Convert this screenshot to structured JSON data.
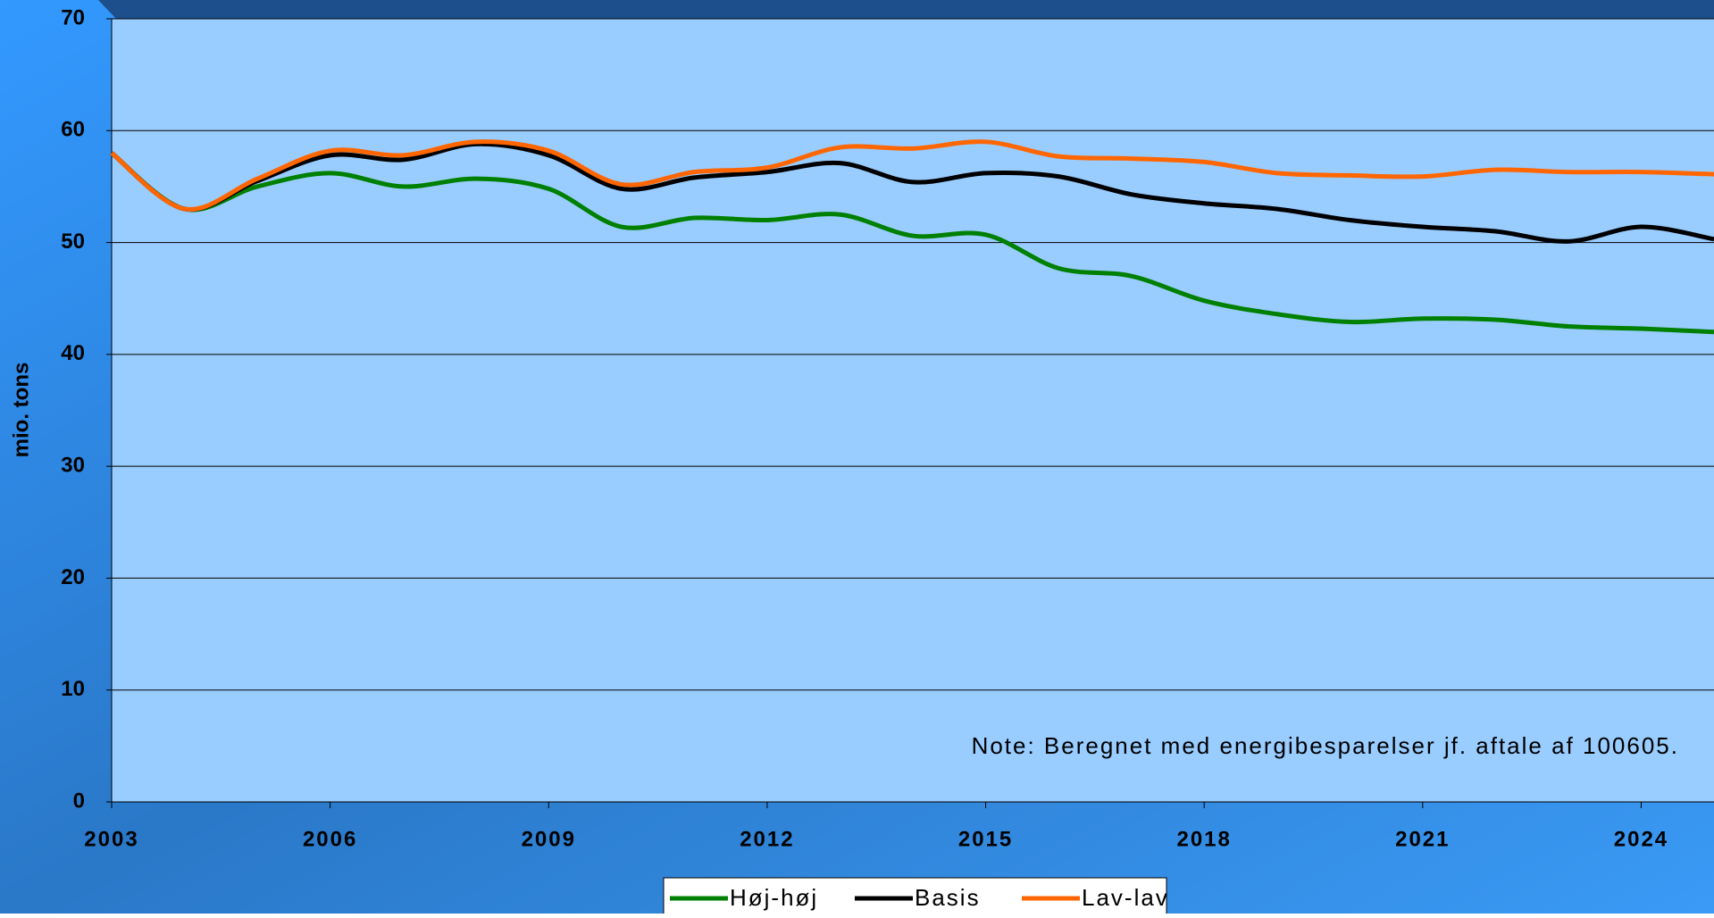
{
  "chart_data": {
    "type": "line",
    "y_label": "mio. tons",
    "annotation": "Note: Beregnet med energibesparelser jf. aftale af 100605.",
    "x": [
      2003,
      2004,
      2005,
      2006,
      2007,
      2008,
      2009,
      2010,
      2011,
      2012,
      2013,
      2014,
      2015,
      2016,
      2017,
      2018,
      2019,
      2020,
      2021,
      2022,
      2023,
      2024,
      2025
    ],
    "series": [
      {
        "name": "Høj-høj",
        "color": "#008000",
        "values": [
          58,
          53,
          55,
          56.2,
          55,
          55.7,
          54.8,
          51.4,
          52.2,
          52,
          52.5,
          50.6,
          50.7,
          47.7,
          47,
          44.8,
          43.6,
          42.9,
          43.2,
          43.1,
          42.5,
          42.3,
          42
        ]
      },
      {
        "name": "Basis",
        "color": "#000000",
        "values": [
          58,
          53,
          55.5,
          57.8,
          57.4,
          58.8,
          57.8,
          54.8,
          55.8,
          56.3,
          57.1,
          55.4,
          56.2,
          55.9,
          54.3,
          53.5,
          53,
          52,
          51.4,
          51,
          50.1,
          51.4,
          50.3
        ]
      },
      {
        "name": "Lav-lav",
        "color": "#ff6600",
        "values": [
          58,
          53,
          55.7,
          58.2,
          57.8,
          59,
          58.2,
          55.2,
          56.3,
          56.7,
          58.5,
          58.4,
          59,
          57.7,
          57.5,
          57.2,
          56.2,
          56,
          55.9,
          56.5,
          56.3,
          56.3,
          56.1
        ]
      }
    ],
    "xlim": [
      2003,
      2025
    ],
    "xticks": [
      2003,
      2006,
      2009,
      2012,
      2015,
      2018,
      2021,
      2024
    ],
    "ylim": [
      0,
      70
    ],
    "yticks": [
      0,
      10,
      20,
      30,
      40,
      50,
      60,
      70
    ],
    "grid": true,
    "legend": "bottom"
  }
}
